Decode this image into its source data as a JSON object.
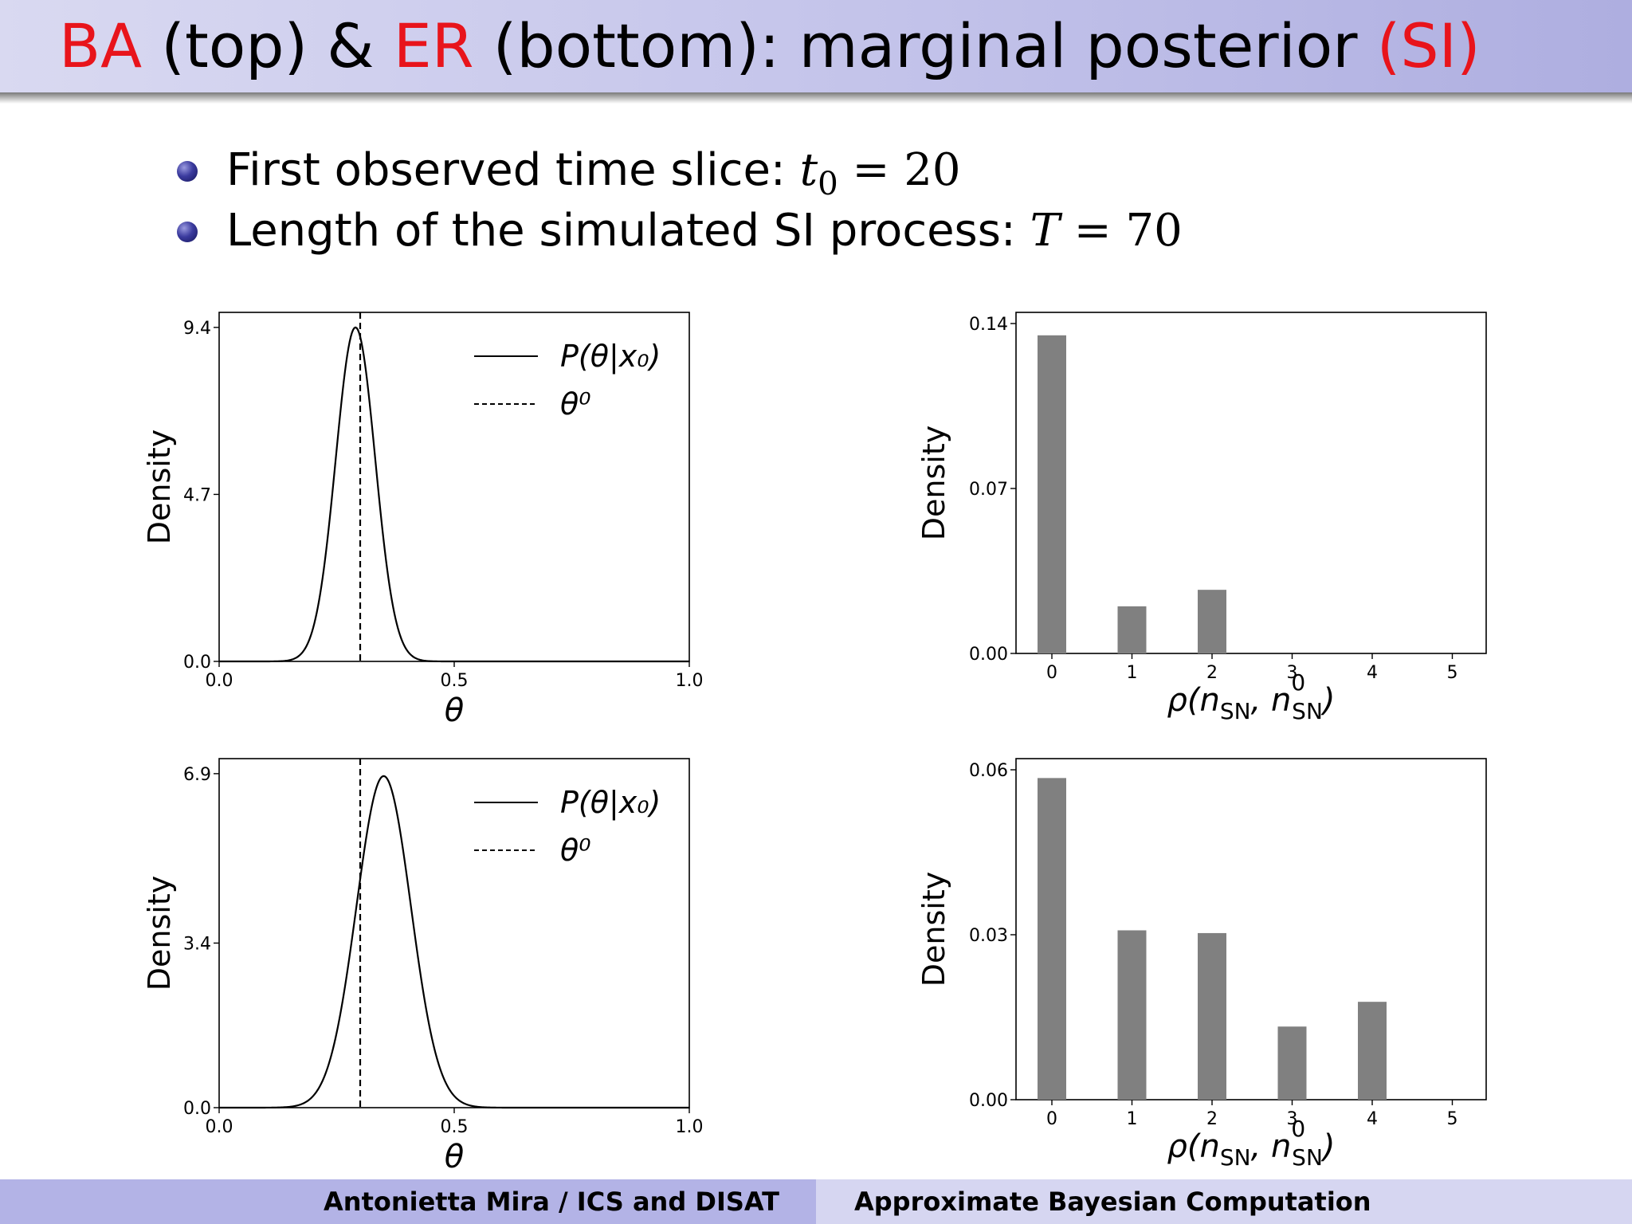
{
  "title": {
    "part1": "BA",
    "part2": " (top) & ",
    "part3": "ER",
    "part4": " (bottom): marginal posterior ",
    "part5": "(SI)"
  },
  "bullets": [
    {
      "text": "First observed time slice:  ",
      "math_var": "t",
      "math_sub": "0",
      "math_rest": " = 20"
    },
    {
      "text": "Length of the simulated SI process:  ",
      "math_var": "T",
      "math_sub": "",
      "math_rest": " = 70"
    }
  ],
  "colors": {
    "accent_red": "#e8141b",
    "bar_gray": "#808080",
    "bullet_blue": "#3b3b9e"
  },
  "chart_data": [
    {
      "type": "line",
      "name": "BA posterior density",
      "ylabel": "Density",
      "xlabel": "θ",
      "xlim": [
        0.0,
        1.0
      ],
      "ylim": [
        0.0,
        9.4
      ],
      "xticks": [
        "0.0",
        "0.5",
        "1.0"
      ],
      "yticks": [
        "0.0",
        "4.7",
        "9.4"
      ],
      "ytick_values": [
        0.0,
        4.7,
        9.4
      ],
      "xtick_values": [
        0.0,
        0.5,
        1.0
      ],
      "series": [
        {
          "name": "P(θ|x₀)",
          "style": "solid",
          "mean": 0.29,
          "sd": 0.042,
          "peak": 9.4
        }
      ],
      "vline": {
        "name": "θ⁰",
        "x": 0.3,
        "style": "dashed"
      },
      "legend": [
        "P(θ|x₀)",
        "θ⁰"
      ],
      "legend_position": "top-right"
    },
    {
      "type": "bar",
      "name": "BA rho histogram",
      "ylabel": "Density",
      "xlabel": "ρ(n_SN, n⁰_SN)",
      "categories": [
        "0",
        "1",
        "2",
        "3",
        "4",
        "5"
      ],
      "values": [
        0.135,
        0.02,
        0.027,
        0.0,
        0.0,
        0.0
      ],
      "ylim": [
        0.0,
        0.14
      ],
      "yticks": [
        "0.00",
        "0.07",
        "0.14"
      ],
      "ytick_values": [
        0.0,
        0.07,
        0.14
      ]
    },
    {
      "type": "line",
      "name": "ER posterior density",
      "ylabel": "Density",
      "xlabel": "θ",
      "xlim": [
        0.0,
        1.0
      ],
      "ylim": [
        0.0,
        6.9
      ],
      "xticks": [
        "0.0",
        "0.5",
        "1.0"
      ],
      "yticks": [
        "0.0",
        "3.4",
        "6.9"
      ],
      "ytick_values": [
        0.0,
        3.4,
        6.9
      ],
      "xtick_values": [
        0.0,
        0.5,
        1.0
      ],
      "series": [
        {
          "name": "P(θ|x₀)",
          "style": "solid",
          "mean": 0.35,
          "sd": 0.058,
          "peak": 6.85
        }
      ],
      "vline": {
        "name": "θ⁰",
        "x": 0.3,
        "style": "dashed"
      },
      "legend": [
        "P(θ|x₀)",
        "θ⁰"
      ],
      "legend_position": "top-right"
    },
    {
      "type": "bar",
      "name": "ER rho histogram",
      "ylabel": "Density",
      "xlabel": "ρ(n_SN, n⁰_SN)",
      "categories": [
        "0",
        "1",
        "2",
        "3",
        "4",
        "5"
      ],
      "values": [
        0.0585,
        0.0308,
        0.0303,
        0.0133,
        0.0178,
        0.0
      ],
      "ylim": [
        0.0,
        0.06
      ],
      "yticks": [
        "0.00",
        "0.03",
        "0.06"
      ],
      "ytick_values": [
        0.0,
        0.03,
        0.06
      ]
    }
  ],
  "footer": {
    "left": "Antonietta Mira / ICS and DISAT",
    "right": "Approximate Bayesian Computation"
  }
}
